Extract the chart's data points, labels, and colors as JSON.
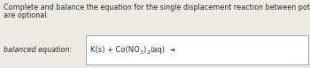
{
  "bg_color": "#eeebe5",
  "box_color": "#ffffff",
  "box_edge_color": "#999999",
  "text_color": "#2a2a2a",
  "instruction_line1": "Complete and balance the equation for the single displacement reaction between potassium and cobalt(II) nitrate. Phases",
  "instruction_line2": "are optional.",
  "label_text": "balanced equation:",
  "eq_part1": "K(s) + Co(NO",
  "eq_sub1": "3",
  "eq_part2": ")",
  "eq_sub2": "2",
  "eq_part3": "(aq)",
  "instruction_fontsize": 5.8,
  "label_fontsize": 5.8,
  "eq_fontsize": 6.0,
  "eq_sub_fontsize": 4.5,
  "fig_width": 3.5,
  "fig_height": 0.77,
  "dpi": 100
}
